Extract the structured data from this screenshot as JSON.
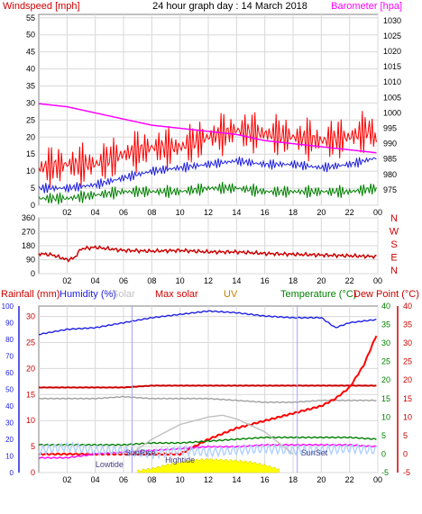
{
  "title": "24 hour graph day : 14 March 2018",
  "chart_data": [
    {
      "type": "line",
      "title": "24 hour graph day : 14 March 2018",
      "ylabel_left": "Windspeed [mph]",
      "ylabel_right": "Barometer [hpa]",
      "ylim_left": [
        0,
        56
      ],
      "ylim_right": [
        970,
        1032
      ],
      "yticks_left": [
        "0",
        "5",
        "10",
        "15",
        "20",
        "25",
        "30",
        "35",
        "40",
        "45",
        "50",
        "55"
      ],
      "yticks_right": [
        "975",
        "980",
        "985",
        "990",
        "995",
        "1000",
        "1005",
        "1010",
        "1015",
        "1020",
        "1025",
        "1030"
      ],
      "xticks": [
        "02",
        "04",
        "06",
        "08",
        "10",
        "12",
        "14",
        "16",
        "18",
        "20",
        "22",
        "00"
      ],
      "grid": true,
      "series": [
        {
          "name": "Windspeed",
          "color": "#ff0000",
          "x": [
            0,
            2,
            4,
            6,
            8,
            10,
            12,
            14,
            16,
            18,
            20,
            22,
            23.5,
            24
          ],
          "y": [
            11,
            12,
            12,
            15,
            17,
            17,
            20,
            22,
            21,
            20,
            19,
            20,
            22,
            18
          ]
        },
        {
          "name": "Barometer",
          "color": "#ff00ff",
          "x": [
            0,
            2,
            4,
            6,
            8,
            10,
            12,
            14,
            16,
            18,
            20,
            22,
            24
          ],
          "y": [
            1003,
            1002,
            1000,
            998,
            996,
            995,
            994,
            993,
            991,
            990,
            989,
            988,
            987
          ]
        },
        {
          "color": "#2020e0",
          "x": [
            0,
            2,
            4,
            6,
            8,
            10,
            12,
            14,
            16,
            18,
            20,
            22,
            24
          ],
          "y": [
            5,
            5,
            6,
            8,
            10,
            11,
            12,
            13,
            12,
            12,
            11,
            12,
            14
          ]
        },
        {
          "color": "#008000",
          "x": [
            0,
            2,
            4,
            6,
            8,
            10,
            12,
            14,
            16,
            18,
            20,
            22,
            24
          ],
          "y": [
            2,
            2,
            3,
            4,
            4,
            4,
            5,
            5,
            4,
            4,
            4,
            4,
            5
          ]
        }
      ]
    },
    {
      "type": "line",
      "yticks_left": [
        "0",
        "90",
        "180",
        "270",
        "360"
      ],
      "direction_labels": [
        "N",
        "W",
        "S",
        "E",
        "N"
      ],
      "ylim": [
        0,
        360
      ],
      "xticks": [
        "02",
        "04",
        "06",
        "08",
        "10",
        "12",
        "14",
        "16",
        "18",
        "20",
        "22",
        "00"
      ],
      "grid": true,
      "series": [
        {
          "color": "#cc0000",
          "x": [
            0,
            1,
            2,
            2.5,
            3,
            4,
            6,
            8,
            10,
            12,
            14,
            16,
            18,
            20,
            22,
            24
          ],
          "y": [
            130,
            120,
            90,
            100,
            160,
            170,
            150,
            145,
            150,
            140,
            140,
            130,
            125,
            120,
            115,
            110
          ]
        }
      ]
    },
    {
      "type": "line",
      "labels": [
        "Rainfall (mm)",
        "Humidity (%)",
        "Solar",
        "Max solar",
        "UV",
        "Temperature (°C)",
        "Dew Point (°C)"
      ],
      "yticks_rain": [
        "0",
        "5",
        "10",
        "15",
        "20",
        "25",
        "30"
      ],
      "yticks_humidity": [
        "0",
        "10",
        "20",
        "30",
        "40",
        "50",
        "60",
        "70",
        "80",
        "90",
        "100"
      ],
      "yticks_temp": [
        "-5",
        "0",
        "5",
        "10",
        "15",
        "20",
        "25",
        "30",
        "35",
        "40"
      ],
      "ylim_humidity": [
        0,
        100
      ],
      "ylim_temp": [
        -5,
        40
      ],
      "xticks": [
        "02",
        "04",
        "06",
        "08",
        "10",
        "12",
        "14",
        "16",
        "18",
        "20",
        "22",
        "00"
      ],
      "annotations": [
        "Lowtide",
        "SunRise",
        "Hightide",
        "SunSet"
      ],
      "grid": true,
      "series": [
        {
          "color": "#2020e0",
          "x": [
            0,
            2,
            4,
            6,
            8,
            10,
            12,
            14,
            16,
            18,
            20,
            21,
            22,
            24
          ],
          "y": [
            83,
            86,
            87,
            90,
            93,
            95,
            97,
            96,
            94,
            93,
            93,
            87,
            90,
            92
          ]
        },
        {
          "color": "#cc0000",
          "x": [
            0,
            2,
            4,
            6,
            8,
            10,
            12,
            14,
            16,
            18,
            20,
            22,
            24
          ],
          "y": [
            18,
            18,
            18,
            18,
            18.5,
            18.5,
            18.5,
            18.5,
            18.5,
            18.5,
            18.5,
            18.5,
            18.5
          ]
        },
        {
          "color": "#a0a0a0",
          "x": [
            0,
            2,
            4,
            6,
            8,
            10,
            12,
            14,
            16,
            18,
            20,
            22,
            24
          ],
          "y": [
            15,
            15,
            15,
            15.5,
            15,
            15,
            15,
            14.5,
            14,
            14,
            14.5,
            14.5,
            14.5
          ]
        },
        {
          "color": "#ff0000",
          "x": [
            0,
            10,
            11,
            12,
            14,
            16,
            18,
            20,
            21,
            22,
            23,
            24
          ],
          "y": [
            0,
            0,
            2,
            4,
            7,
            9,
            11,
            13,
            15,
            18,
            24,
            33
          ]
        },
        {
          "color": "#008000",
          "x": [
            0,
            2,
            4,
            6,
            8,
            10,
            12,
            14,
            16,
            18,
            20,
            22,
            24
          ],
          "y": [
            2.5,
            2.5,
            2.5,
            2.5,
            3,
            3,
            3.5,
            4,
            4.5,
            4.5,
            4.5,
            4.5,
            4
          ]
        },
        {
          "color": "#ff00ff",
          "x": [
            0,
            2,
            4,
            6,
            8,
            10,
            12,
            14,
            16,
            18,
            20,
            22,
            24
          ],
          "y": [
            -1,
            -1,
            0,
            0.5,
            1,
            1.5,
            2,
            2,
            2.5,
            2.5,
            2.5,
            2.5,
            2
          ]
        },
        {
          "color": "#b0d0ff",
          "x": [
            0,
            2,
            4,
            6,
            8,
            10,
            12,
            14,
            16,
            18,
            20,
            22,
            24
          ],
          "y": [
            1,
            2,
            1,
            1,
            0,
            1,
            0.5,
            1,
            1.5,
            1,
            1,
            1.5,
            1
          ]
        },
        {
          "color": "#c0c0c0",
          "x": [
            6.5,
            8,
            10,
            12,
            13,
            14,
            16,
            18
          ],
          "y": [
            0,
            4,
            8,
            10,
            10.5,
            9.5,
            6,
            0
          ]
        },
        {
          "color": "#ffff00",
          "x": [
            7,
            8,
            9,
            10,
            11,
            12,
            13,
            14,
            15,
            16,
            17
          ],
          "y": [
            0,
            0.3,
            0.8,
            1.2,
            1.5,
            1.6,
            1.5,
            1.4,
            1.2,
            0.8,
            0.2
          ]
        }
      ]
    }
  ]
}
